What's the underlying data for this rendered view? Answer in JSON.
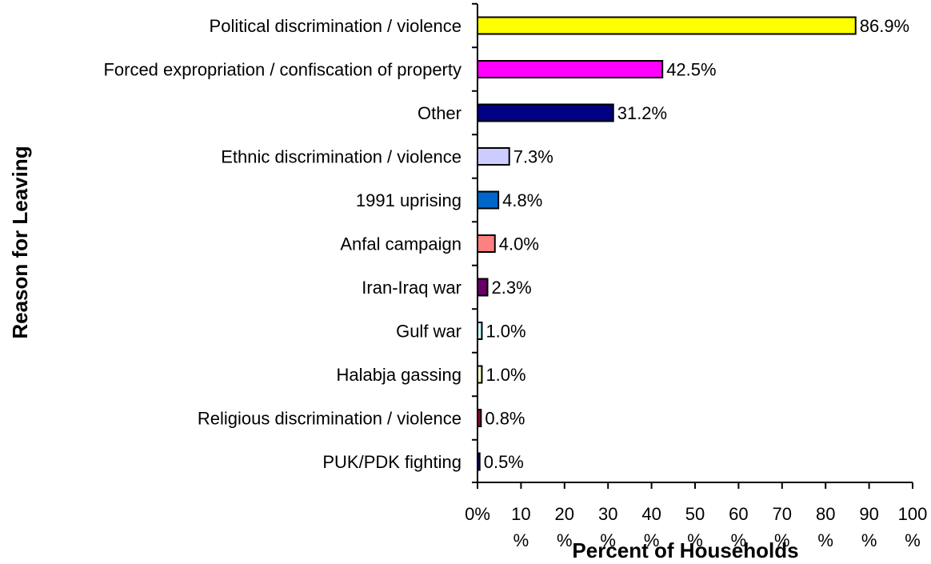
{
  "chart_data": {
    "type": "bar",
    "orientation": "horizontal",
    "title": "",
    "xlabel": "Percent of Households",
    "ylabel": "Reason for Leaving",
    "xlim": [
      0,
      100
    ],
    "x_ticks": [
      {
        "value": 0,
        "label_top": "0%",
        "label_bottom": ""
      },
      {
        "value": 10,
        "label_top": "10",
        "label_bottom": "%"
      },
      {
        "value": 20,
        "label_top": "20",
        "label_bottom": "%"
      },
      {
        "value": 30,
        "label_top": "30",
        "label_bottom": "%"
      },
      {
        "value": 40,
        "label_top": "40",
        "label_bottom": "%"
      },
      {
        "value": 50,
        "label_top": "50",
        "label_bottom": "%"
      },
      {
        "value": 60,
        "label_top": "60",
        "label_bottom": "%"
      },
      {
        "value": 70,
        "label_top": "70",
        "label_bottom": "%"
      },
      {
        "value": 80,
        "label_top": "80",
        "label_bottom": "%"
      },
      {
        "value": 90,
        "label_top": "90",
        "label_bottom": "%"
      },
      {
        "value": 100,
        "label_top": "100",
        "label_bottom": "%"
      }
    ],
    "grid": false,
    "legend": "none",
    "categories": [
      "Political discrimination / violence",
      "Forced expropriation / confiscation of property",
      "Other",
      "Ethnic discrimination / violence",
      "1991 uprising",
      "Anfal campaign",
      "Iran-Iraq war",
      "Gulf war",
      "Halabja gassing",
      "Religious discrimination / violence",
      "PUK/PDK fighting"
    ],
    "values": [
      86.9,
      42.5,
      31.2,
      7.3,
      4.8,
      4.0,
      2.3,
      1.0,
      1.0,
      0.8,
      0.5
    ],
    "value_labels": [
      "86.9%",
      "42.5%",
      "31.2%",
      "7.3%",
      "4.8%",
      "4.0%",
      "2.3%",
      "1.0%",
      "1.0%",
      "0.8%",
      "0.5%"
    ],
    "colors": [
      "#ffff00",
      "#ff00ff",
      "#000080",
      "#ccccff",
      "#0066cc",
      "#ff8080",
      "#660066",
      "#ccffff",
      "#ffffcc",
      "#990033",
      "#000080"
    ]
  }
}
